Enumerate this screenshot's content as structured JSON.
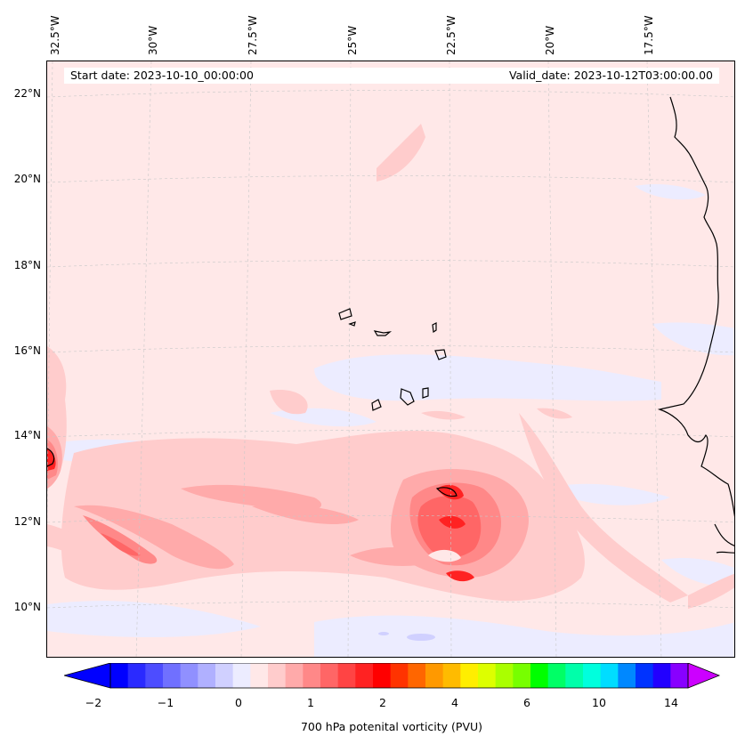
{
  "map": {
    "start_date_text": "Start date: 2023-10-10_00:00:00",
    "valid_date_text": "Valid_date: 2023-10-12T03:00:00.00",
    "lon_labels": [
      "32.5°W",
      "30°W",
      "27.5°W",
      "25°W",
      "22.5°W",
      "20°W",
      "17.5°W"
    ],
    "lat_labels": [
      "22°N",
      "20°N",
      "18°N",
      "16°N",
      "14°N",
      "12°N",
      "10°N"
    ],
    "background_color": "#ffe8e8"
  },
  "colorbar": {
    "ticks": [
      "−2",
      "−1",
      "0",
      "1",
      "2",
      "4",
      "6",
      "10",
      "14"
    ],
    "label": "700 hPa potenital vorticity (PVU)",
    "colors": [
      "#0000ff",
      "#2a2aff",
      "#4d4dff",
      "#7070ff",
      "#9090ff",
      "#b0b0ff",
      "#d0d0ff",
      "#ececff",
      "#ffe8e8",
      "#ffcccc",
      "#ffaaaa",
      "#ff8888",
      "#ff6666",
      "#ff4444",
      "#ff2222",
      "#ff0000",
      "#ff3300",
      "#ff6600",
      "#ff9900",
      "#ffbb00",
      "#ffee00",
      "#ddff00",
      "#aaff00",
      "#77ff00",
      "#00ff00",
      "#00ff66",
      "#00ffaa",
      "#00ffdd",
      "#00ddff",
      "#0088ff",
      "#0033ff",
      "#2200ff",
      "#8800ff"
    ],
    "under_color": "#0000ff",
    "over_color": "#cc00ff"
  }
}
